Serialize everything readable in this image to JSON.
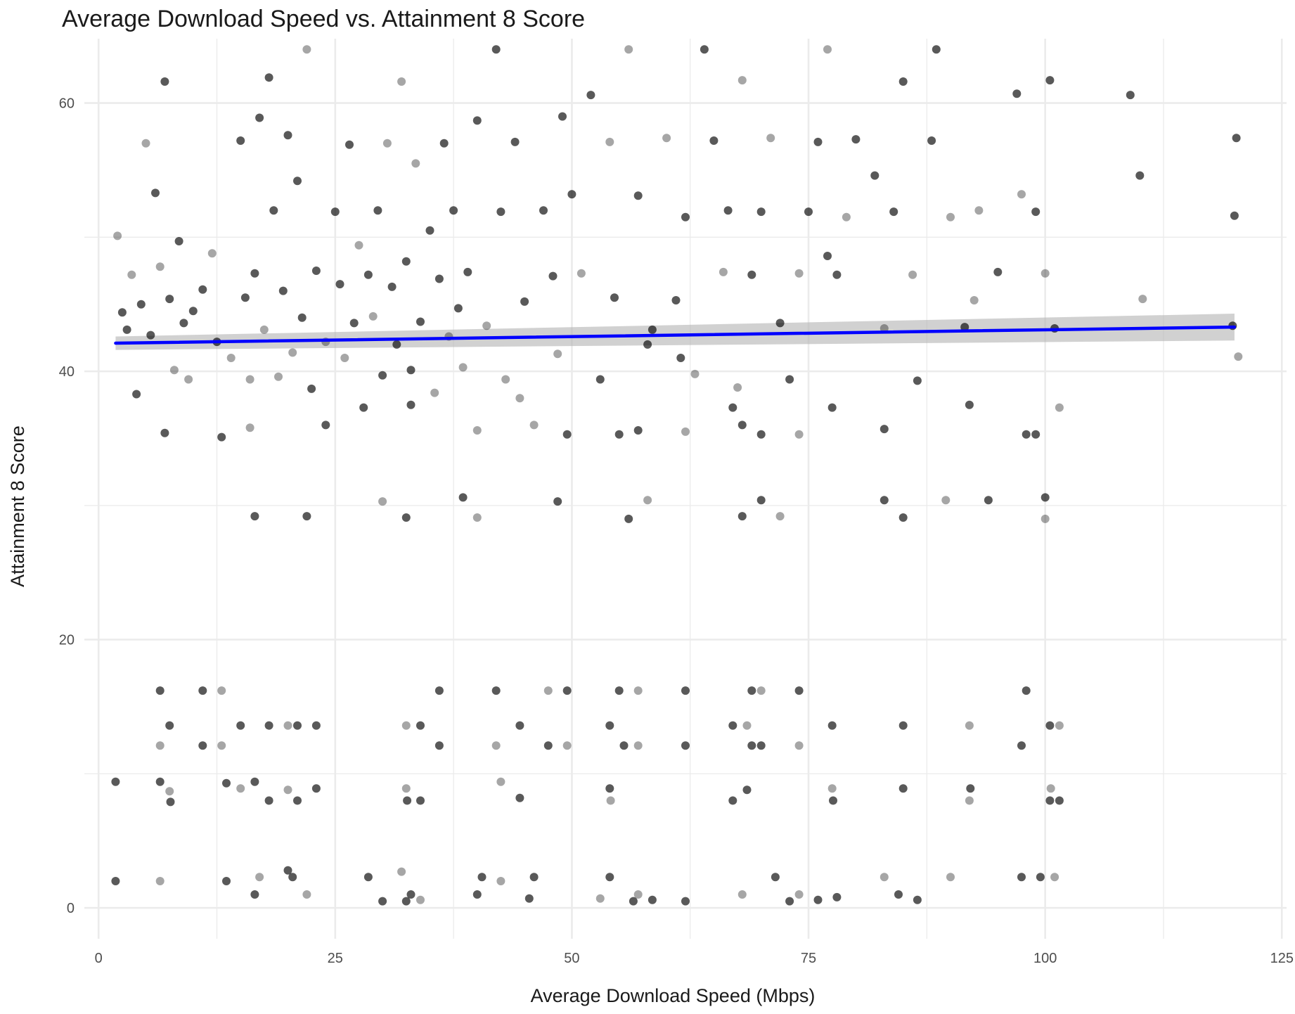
{
  "chart_data": {
    "type": "scatter",
    "title": "Average Download Speed vs. Attainment 8 Score",
    "xlabel": "Average Download Speed (Mbps)",
    "ylabel": "Attainment 8 Score",
    "xlim": [
      -1.5,
      125.5
    ],
    "ylim": [
      -2.3,
      64.8
    ],
    "x_ticks": [
      0,
      25,
      50,
      75,
      100,
      125
    ],
    "y_ticks": [
      0,
      20,
      40,
      60
    ],
    "grid": true,
    "legend": "none",
    "colors": {
      "points": "#000000",
      "trend": "#0000ff",
      "ribbon": "#b3b3b3",
      "grid": "#ebebeb"
    },
    "trend_line": {
      "method": "linear fit with confidence band",
      "x": [
        1.8,
        120
      ],
      "y": [
        42.1,
        43.3
      ],
      "ci_halfwidth": [
        0.5,
        1.0
      ]
    },
    "series": [
      {
        "points": [
          [
            2.0,
            50.1
          ],
          [
            2.5,
            44.4
          ],
          [
            3.0,
            43.1
          ],
          [
            3.5,
            47.2
          ],
          [
            4.0,
            38.3
          ],
          [
            4.5,
            45.0
          ],
          [
            5.0,
            57.0
          ],
          [
            5.5,
            42.7
          ],
          [
            6.0,
            53.3
          ],
          [
            6.5,
            47.8
          ],
          [
            7.0,
            61.6
          ],
          [
            7.5,
            45.4
          ],
          [
            8.0,
            40.1
          ],
          [
            8.5,
            49.7
          ],
          [
            9.0,
            43.6
          ],
          [
            9.5,
            39.4
          ],
          [
            10.0,
            44.5
          ],
          [
            11.0,
            46.1
          ],
          [
            12.0,
            48.8
          ],
          [
            12.5,
            42.2
          ],
          [
            13.0,
            35.1
          ],
          [
            14.0,
            41.0
          ],
          [
            15.0,
            57.2
          ],
          [
            15.5,
            45.5
          ],
          [
            16.0,
            39.4
          ],
          [
            16.5,
            47.3
          ],
          [
            17.0,
            58.9
          ],
          [
            17.5,
            43.1
          ],
          [
            18.0,
            61.9
          ],
          [
            18.5,
            52.0
          ],
          [
            19.0,
            39.6
          ],
          [
            19.5,
            46.0
          ],
          [
            20.0,
            57.6
          ],
          [
            20.5,
            41.4
          ],
          [
            21.0,
            54.2
          ],
          [
            21.5,
            44.0
          ],
          [
            22.0,
            64.0
          ],
          [
            22.5,
            38.7
          ],
          [
            23.0,
            47.5
          ],
          [
            24.0,
            42.2
          ],
          [
            25.0,
            51.9
          ],
          [
            25.5,
            46.5
          ],
          [
            26.0,
            41.0
          ],
          [
            26.5,
            56.9
          ],
          [
            27.0,
            43.6
          ],
          [
            27.5,
            49.4
          ],
          [
            28.0,
            37.3
          ],
          [
            28.5,
            47.2
          ],
          [
            29.0,
            44.1
          ],
          [
            29.5,
            52.0
          ],
          [
            30.0,
            39.7
          ],
          [
            30.5,
            57.0
          ],
          [
            31.0,
            46.3
          ],
          [
            31.5,
            42.0
          ],
          [
            32.0,
            61.6
          ],
          [
            32.5,
            48.2
          ],
          [
            33.0,
            40.1
          ],
          [
            33.5,
            55.5
          ],
          [
            34.0,
            43.7
          ],
          [
            35.0,
            50.5
          ],
          [
            35.5,
            38.4
          ],
          [
            36.0,
            46.9
          ],
          [
            36.5,
            57.0
          ],
          [
            37.0,
            42.6
          ],
          [
            37.5,
            52.0
          ],
          [
            38.0,
            44.7
          ],
          [
            38.5,
            40.3
          ],
          [
            39.0,
            47.4
          ],
          [
            40.0,
            58.7
          ],
          [
            41.0,
            43.4
          ],
          [
            42.0,
            64.0
          ],
          [
            42.5,
            51.9
          ],
          [
            43.0,
            39.4
          ],
          [
            44.0,
            57.1
          ],
          [
            45.0,
            45.2
          ],
          [
            46.0,
            36.0
          ],
          [
            47.0,
            52.0
          ],
          [
            48.0,
            47.1
          ],
          [
            48.5,
            41.3
          ],
          [
            49.0,
            59.0
          ],
          [
            50.0,
            53.2
          ],
          [
            51.0,
            47.3
          ],
          [
            52.0,
            60.6
          ],
          [
            53.0,
            39.4
          ],
          [
            54.0,
            57.1
          ],
          [
            54.5,
            45.5
          ],
          [
            55.0,
            35.3
          ],
          [
            56.0,
            64.0
          ],
          [
            57.0,
            53.1
          ],
          [
            58.0,
            42.0
          ],
          [
            60.0,
            57.4
          ],
          [
            61.0,
            45.3
          ],
          [
            62.0,
            51.5
          ],
          [
            63.0,
            39.8
          ],
          [
            64.0,
            64.0
          ],
          [
            65.0,
            57.2
          ],
          [
            66.0,
            47.4
          ],
          [
            66.5,
            52.0
          ],
          [
            67.0,
            37.3
          ],
          [
            68.0,
            61.7
          ],
          [
            69.0,
            47.2
          ],
          [
            70.0,
            51.9
          ],
          [
            71.0,
            57.4
          ],
          [
            72.0,
            43.6
          ],
          [
            73.0,
            39.4
          ],
          [
            74.0,
            47.3
          ],
          [
            75.0,
            51.9
          ],
          [
            76.0,
            57.1
          ],
          [
            77.0,
            64.0
          ],
          [
            77.5,
            37.3
          ],
          [
            78.0,
            47.2
          ],
          [
            79.0,
            51.5
          ],
          [
            80.0,
            57.3
          ],
          [
            82.0,
            54.6
          ],
          [
            83.0,
            43.2
          ],
          [
            84.0,
            51.9
          ],
          [
            85.0,
            61.6
          ],
          [
            86.0,
            47.2
          ],
          [
            88.0,
            57.2
          ],
          [
            88.5,
            64.0
          ],
          [
            90.0,
            51.5
          ],
          [
            91.5,
            43.3
          ],
          [
            92.0,
            37.5
          ],
          [
            93.0,
            52.0
          ],
          [
            95.0,
            47.4
          ],
          [
            97.0,
            60.7
          ],
          [
            97.5,
            53.2
          ],
          [
            98.0,
            35.3
          ],
          [
            99.0,
            51.9
          ],
          [
            100.0,
            47.3
          ],
          [
            100.5,
            61.7
          ],
          [
            101.0,
            43.2
          ],
          [
            101.5,
            37.3
          ],
          [
            109.0,
            60.6
          ],
          [
            110.0,
            54.6
          ],
          [
            110.3,
            45.4
          ],
          [
            120.0,
            51.6
          ],
          [
            120.2,
            57.4
          ],
          [
            120.4,
            41.1
          ],
          [
            119.8,
            43.4
          ],
          [
            7.0,
            35.4
          ],
          [
            16.0,
            35.8
          ],
          [
            24.0,
            36.0
          ],
          [
            33.0,
            37.5
          ],
          [
            40.0,
            35.6
          ],
          [
            49.5,
            35.3
          ],
          [
            57.0,
            35.6
          ],
          [
            62.0,
            35.5
          ],
          [
            68.0,
            36.0
          ],
          [
            70.0,
            35.3
          ],
          [
            74.0,
            35.3
          ],
          [
            83.0,
            35.7
          ],
          [
            99.0,
            35.3
          ],
          [
            44.5,
            38.0
          ],
          [
            58.5,
            43.1
          ],
          [
            61.5,
            41.0
          ],
          [
            67.5,
            38.8
          ],
          [
            77.0,
            48.6
          ],
          [
            86.5,
            39.3
          ],
          [
            92.5,
            45.3
          ],
          [
            16.5,
            29.2
          ],
          [
            22.0,
            29.2
          ],
          [
            30.0,
            30.3
          ],
          [
            32.5,
            29.1
          ],
          [
            38.5,
            30.6
          ],
          [
            40.0,
            29.1
          ],
          [
            48.5,
            30.3
          ],
          [
            56.0,
            29.0
          ],
          [
            58.0,
            30.4
          ],
          [
            68.0,
            29.2
          ],
          [
            70.0,
            30.4
          ],
          [
            72.0,
            29.2
          ],
          [
            83.0,
            30.4
          ],
          [
            85.0,
            29.1
          ],
          [
            89.5,
            30.4
          ],
          [
            94.0,
            30.4
          ],
          [
            100.0,
            30.6
          ],
          [
            100.0,
            29.0
          ],
          [
            6.5,
            16.2
          ],
          [
            11.0,
            16.2
          ],
          [
            13.0,
            16.2
          ],
          [
            36.0,
            16.2
          ],
          [
            42.0,
            16.2
          ],
          [
            47.5,
            16.2
          ],
          [
            49.5,
            16.2
          ],
          [
            55.0,
            16.2
          ],
          [
            57.0,
            16.2
          ],
          [
            62.0,
            16.2
          ],
          [
            69.0,
            16.2
          ],
          [
            70.0,
            16.2
          ],
          [
            74.0,
            16.2
          ],
          [
            98.0,
            16.2
          ],
          [
            6.5,
            12.1
          ],
          [
            7.5,
            13.6
          ],
          [
            11.0,
            12.1
          ],
          [
            13.0,
            12.1
          ],
          [
            15.0,
            13.6
          ],
          [
            18.0,
            13.6
          ],
          [
            20.0,
            13.6
          ],
          [
            21.0,
            13.6
          ],
          [
            23.0,
            13.6
          ],
          [
            32.5,
            13.6
          ],
          [
            34.0,
            13.6
          ],
          [
            36.0,
            12.1
          ],
          [
            42.0,
            12.1
          ],
          [
            44.5,
            13.6
          ],
          [
            47.5,
            12.1
          ],
          [
            49.5,
            12.1
          ],
          [
            54.0,
            13.6
          ],
          [
            55.5,
            12.1
          ],
          [
            57.0,
            12.1
          ],
          [
            62.0,
            12.1
          ],
          [
            67.0,
            13.6
          ],
          [
            68.5,
            13.6
          ],
          [
            69.0,
            12.1
          ],
          [
            70.0,
            12.1
          ],
          [
            74.0,
            12.1
          ],
          [
            77.5,
            13.6
          ],
          [
            85.0,
            13.6
          ],
          [
            92.0,
            13.6
          ],
          [
            97.5,
            12.1
          ],
          [
            100.5,
            13.6
          ],
          [
            101.5,
            13.6
          ],
          [
            1.8,
            9.4
          ],
          [
            6.5,
            9.4
          ],
          [
            7.5,
            8.7
          ],
          [
            7.6,
            7.9
          ],
          [
            13.5,
            9.3
          ],
          [
            15.0,
            8.9
          ],
          [
            16.5,
            9.4
          ],
          [
            18.0,
            8.0
          ],
          [
            20.0,
            8.8
          ],
          [
            21.0,
            8.0
          ],
          [
            23.0,
            8.9
          ],
          [
            32.5,
            8.9
          ],
          [
            32.6,
            8.0
          ],
          [
            34.0,
            8.0
          ],
          [
            42.5,
            9.4
          ],
          [
            44.5,
            8.2
          ],
          [
            54.0,
            8.9
          ],
          [
            54.1,
            8.0
          ],
          [
            67.0,
            8.0
          ],
          [
            68.5,
            8.8
          ],
          [
            77.5,
            8.9
          ],
          [
            77.6,
            8.0
          ],
          [
            85.0,
            8.9
          ],
          [
            92.0,
            8.0
          ],
          [
            92.1,
            8.9
          ],
          [
            100.5,
            8.0
          ],
          [
            100.6,
            8.9
          ],
          [
            101.5,
            8.0
          ],
          [
            1.8,
            2.0
          ],
          [
            6.5,
            2.0
          ],
          [
            13.5,
            2.0
          ],
          [
            16.5,
            1.0
          ],
          [
            17.0,
            2.3
          ],
          [
            20.0,
            2.8
          ],
          [
            20.5,
            2.3
          ],
          [
            22.0,
            1.0
          ],
          [
            28.5,
            2.3
          ],
          [
            30.0,
            0.5
          ],
          [
            32.0,
            2.7
          ],
          [
            32.5,
            0.5
          ],
          [
            33.0,
            1.0
          ],
          [
            34.0,
            0.6
          ],
          [
            40.0,
            1.0
          ],
          [
            40.5,
            2.3
          ],
          [
            42.5,
            2.0
          ],
          [
            45.5,
            0.7
          ],
          [
            46.0,
            2.3
          ],
          [
            53.0,
            0.7
          ],
          [
            54.0,
            2.3
          ],
          [
            56.5,
            0.5
          ],
          [
            57.0,
            1.0
          ],
          [
            58.5,
            0.6
          ],
          [
            62.0,
            0.5
          ],
          [
            68.0,
            1.0
          ],
          [
            71.5,
            2.3
          ],
          [
            73.0,
            0.5
          ],
          [
            74.0,
            1.0
          ],
          [
            76.0,
            0.6
          ],
          [
            78.0,
            0.8
          ],
          [
            83.0,
            2.3
          ],
          [
            84.5,
            1.0
          ],
          [
            86.5,
            0.6
          ],
          [
            90.0,
            2.3
          ],
          [
            97.5,
            2.3
          ],
          [
            99.5,
            2.3
          ],
          [
            101.0,
            2.3
          ]
        ]
      }
    ]
  }
}
